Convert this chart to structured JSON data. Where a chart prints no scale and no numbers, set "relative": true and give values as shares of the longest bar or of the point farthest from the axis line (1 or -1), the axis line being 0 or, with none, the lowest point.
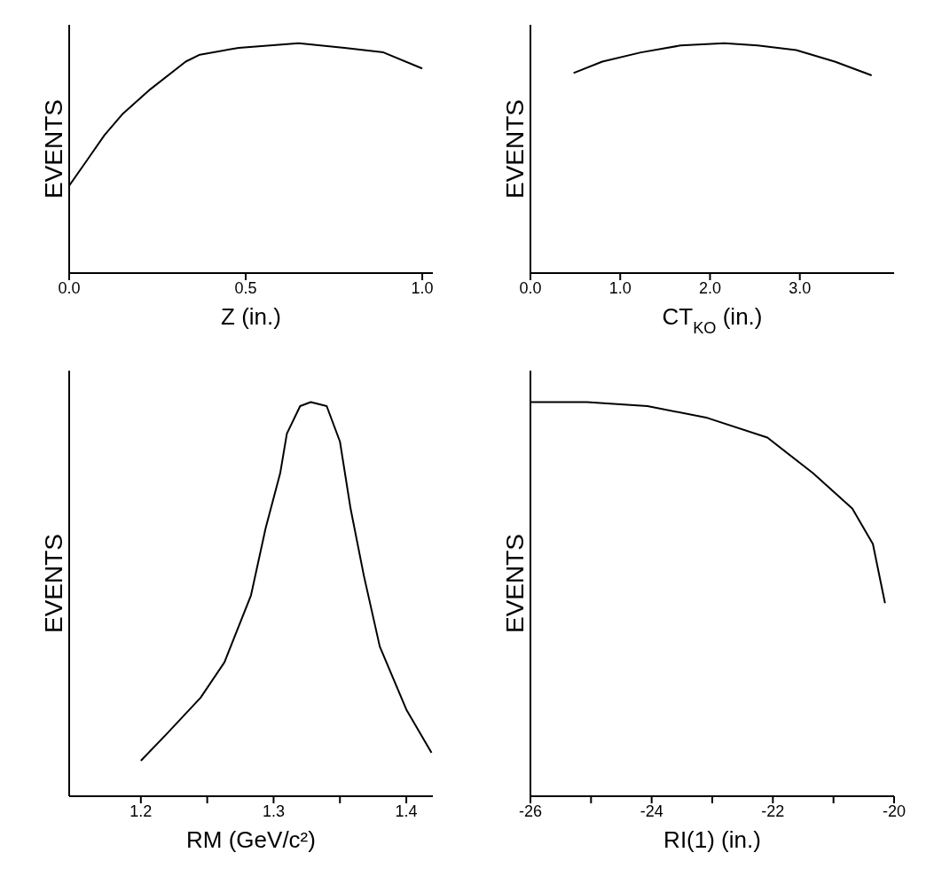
{
  "chart_data": [
    {
      "type": "line",
      "relative": true,
      "marker": "none",
      "xlabel": "Z (in.)",
      "ylabel": "EVENTS",
      "xlim": [
        0,
        1.03
      ],
      "xticks": [
        {
          "value": 0,
          "label": "0.0"
        },
        0.5,
        {
          "value": 1,
          "label": "1.0"
        }
      ],
      "x": [
        0,
        0.05,
        0.1,
        0.15,
        0.23,
        0.33,
        0.37,
        0.48,
        0.65,
        0.78,
        0.89,
        1.0
      ],
      "series": [
        {
          "color": "#000000",
          "values": [
            0.38,
            0.49,
            0.6,
            0.69,
            0.8,
            0.92,
            0.95,
            0.98,
            1.0,
            0.98,
            0.96,
            0.89
          ]
        }
      ]
    },
    {
      "type": "line",
      "relative": true,
      "marker": "none",
      "xlabel": "CT$_{KO}$ (in.)",
      "ylabel": "EVENTS",
      "xlim": [
        0,
        4.05
      ],
      "xticks": [
        {
          "value": 0,
          "label": "0.0"
        },
        {
          "value": 1,
          "label": "1.0"
        },
        {
          "value": 2,
          "label": "2.0"
        },
        {
          "value": 3,
          "label": "3.0"
        }
      ],
      "x": [
        0.48,
        0.8,
        1.23,
        1.67,
        2.16,
        2.53,
        2.96,
        3.39,
        3.8
      ],
      "series": [
        {
          "color": "#000000",
          "values": [
            0.87,
            0.92,
            0.96,
            0.99,
            1.0,
            0.99,
            0.97,
            0.92,
            0.86
          ]
        }
      ]
    },
    {
      "type": "line",
      "relative": true,
      "marker": "none",
      "xlabel": "RM (GeV/c²)",
      "ylabel": "EVENTS",
      "xlim": [
        1.146,
        1.42
      ],
      "xticks": [
        1.2,
        {
          "value": 1.25,
          "label": null
        },
        1.3,
        {
          "value": 1.35,
          "label": null
        },
        1.4
      ],
      "x": [
        1.2,
        1.22,
        1.245,
        1.263,
        1.283,
        1.294,
        1.305,
        1.31,
        1.32,
        1.328,
        1.34,
        1.35,
        1.358,
        1.368,
        1.38,
        1.4,
        1.419
      ],
      "series": [
        {
          "color": "#000000",
          "values": [
            0.09,
            0.16,
            0.25,
            0.34,
            0.51,
            0.68,
            0.82,
            0.92,
            0.99,
            1.0,
            0.99,
            0.9,
            0.73,
            0.56,
            0.38,
            0.22,
            0.11
          ]
        }
      ]
    },
    {
      "type": "line",
      "relative": true,
      "marker": "none",
      "xlabel": "RI(1) (in.)",
      "ylabel": "EVENTS",
      "xlim": [
        -26,
        -20
      ],
      "xticks": [
        -26,
        {
          "value": -25,
          "label": null
        },
        -24,
        {
          "value": -23,
          "label": null
        },
        -22,
        {
          "value": -21,
          "label": null
        },
        -20
      ],
      "x": [
        -26,
        -25.07,
        -24.07,
        -23.08,
        -22.09,
        -21.34,
        -20.69,
        -20.35,
        -20.15
      ],
      "series": [
        {
          "color": "#000000",
          "values": [
            1.0,
            1.0,
            0.99,
            0.96,
            0.91,
            0.82,
            0.73,
            0.64,
            0.49
          ]
        }
      ]
    }
  ]
}
